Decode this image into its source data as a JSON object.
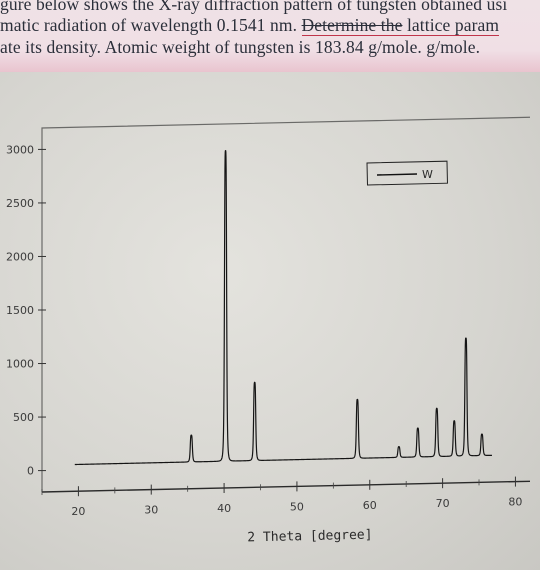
{
  "problem": {
    "line1": "gure below shows the X-ray diffraction pattern of tungsten obtained usi",
    "line2_pre": "matic radiation of wavelength 0.1541 nm.",
    "line2_struck": "Determine the",
    "line2_post": "lattice param",
    "line3": "ate its density. Atomic weight of tungsten is 183.84 g/mole. g/mole."
  },
  "chart_data": {
    "type": "line",
    "title": "",
    "xlabel": "2 Theta [degree]",
    "ylabel": "",
    "xlim": [
      15,
      82
    ],
    "ylim": [
      -200,
      3200
    ],
    "xticks": [
      20,
      30,
      40,
      50,
      60,
      70,
      80
    ],
    "yticks": [
      0,
      500,
      1000,
      1500,
      2000,
      2500,
      3000
    ],
    "legend": {
      "position": "top-right",
      "entries": [
        "W"
      ]
    },
    "series": [
      {
        "name": "W",
        "baseline": 50,
        "peaks": [
          {
            "x": 35.5,
            "y": 300
          },
          {
            "x": 40.2,
            "y": 2950
          },
          {
            "x": 44.2,
            "y": 780
          },
          {
            "x": 58.3,
            "y": 600
          },
          {
            "x": 64.0,
            "y": 150
          },
          {
            "x": 66.6,
            "y": 320
          },
          {
            "x": 69.2,
            "y": 500
          },
          {
            "x": 71.6,
            "y": 380
          },
          {
            "x": 73.2,
            "y": 1150
          },
          {
            "x": 75.4,
            "y": 250
          }
        ]
      }
    ]
  }
}
